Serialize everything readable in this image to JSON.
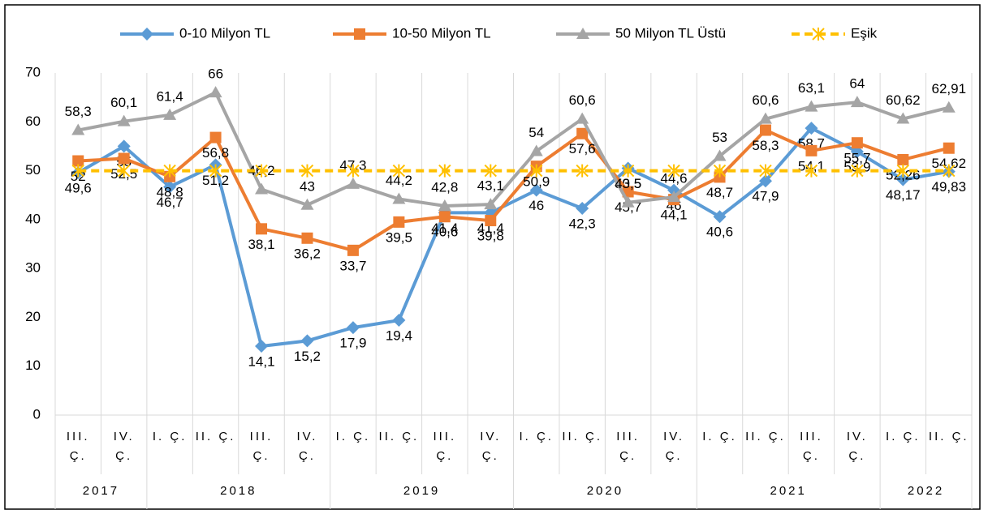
{
  "chart_data": {
    "type": "line",
    "categories": [
      "III. Ç.",
      "IV. Ç.",
      "I. Ç.",
      "II. Ç.",
      "III. Ç.",
      "IV. Ç.",
      "I. Ç.",
      "II. Ç.",
      "III. Ç.",
      "IV. Ç.",
      "I. Ç.",
      "II. Ç.",
      "III. Ç.",
      "IV. Ç.",
      "I. Ç.",
      "II. Ç.",
      "III. Ç.",
      "IV. Ç.",
      "I. Ç.",
      "II. Ç."
    ],
    "years": [
      "2017",
      "2017",
      "2018",
      "2018",
      "2018",
      "2018",
      "2019",
      "2019",
      "2019",
      "2019",
      "2020",
      "2020",
      "2020",
      "2020",
      "2021",
      "2021",
      "2021",
      "2021",
      "2022",
      "2022"
    ],
    "series": [
      {
        "name": "0-10 Milyon TL",
        "color": "#5b9bd5",
        "marker": "diamond",
        "values": [
          49.6,
          55,
          46.7,
          51.2,
          14.1,
          15.2,
          17.9,
          19.4,
          41.4,
          41.4,
          46,
          42.3,
          50.5,
          46,
          40.6,
          47.9,
          58.7,
          53.9,
          48.17,
          49.83
        ],
        "value_labels": [
          "49,6",
          "55",
          "46,7",
          "51,2",
          "14,1",
          "15,2",
          "17,9",
          "19,4",
          "41,4",
          "41,4",
          "46",
          "42,3",
          "50,5",
          "46",
          "40,6",
          "47,9",
          "58,7",
          "53,9",
          "48,17",
          "49,83"
        ]
      },
      {
        "name": "10-50 Milyon TL",
        "color": "#ed7d31",
        "marker": "square",
        "values": [
          52,
          52.5,
          48.8,
          56.8,
          38.1,
          36.2,
          33.7,
          39.5,
          40.6,
          39.8,
          50.9,
          57.6,
          45.7,
          44.1,
          48.7,
          58.3,
          54.1,
          55.7,
          52.26,
          54.62
        ],
        "value_labels": [
          "52",
          "52,5",
          "48,8",
          "56,8",
          "38,1",
          "36,2",
          "33,7",
          "39,5",
          "40,6",
          "39,8",
          "50,9",
          "57,6",
          "45,7",
          "44,1",
          "48,7",
          "58,3",
          "54,1",
          "55,7",
          "52,26",
          "54,62"
        ]
      },
      {
        "name": "50 Milyon TL Üstü",
        "color": "#a5a5a5",
        "marker": "triangle",
        "values": [
          58.3,
          60.1,
          61.4,
          66,
          46.2,
          43,
          47.3,
          44.2,
          42.8,
          43.1,
          54,
          60.6,
          43.5,
          44.6,
          53,
          60.6,
          63.1,
          64,
          60.62,
          62.91
        ],
        "value_labels": [
          "58,3",
          "60,1",
          "61,4",
          "66",
          "46,2",
          "43",
          "47,3",
          "44,2",
          "42,8",
          "43,1",
          "54",
          "60,6",
          "43,5",
          "44,6",
          "53",
          "60,6",
          "63,1",
          "64",
          "60,62",
          "62,91"
        ]
      },
      {
        "name": "Eşik",
        "color": "#ffc000",
        "marker": "star",
        "dashed": true,
        "values": [
          50,
          50,
          50,
          50,
          50,
          50,
          50,
          50,
          50,
          50,
          50,
          50,
          50,
          50,
          50,
          50,
          50,
          50,
          50,
          50
        ]
      }
    ],
    "ylim": [
      0,
      70
    ],
    "yticks": [
      0,
      10,
      20,
      30,
      40,
      50,
      60,
      70
    ],
    "grid": false,
    "legend": "top"
  }
}
